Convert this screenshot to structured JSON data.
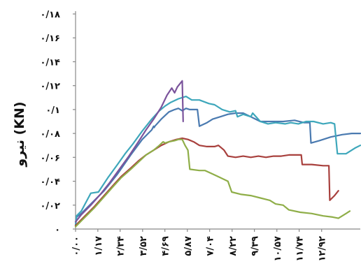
{
  "chart_data": {
    "type": "line",
    "ylabel": "نیرو (KN)",
    "xlabel": "",
    "title": "",
    "ylim": [
      0,
      0.18
    ],
    "xlim": [
      0,
      14.95
    ],
    "yticks": [
      {
        "value": 0,
        "label": "۰"
      },
      {
        "value": 0.02,
        "label": "۰/۰۲"
      },
      {
        "value": 0.04,
        "label": "۰/۰۴"
      },
      {
        "value": 0.06,
        "label": "۰/۰۶"
      },
      {
        "value": 0.08,
        "label": "۰/۰۸"
      },
      {
        "value": 0.1,
        "label": "۰/۱"
      },
      {
        "value": 0.12,
        "label": "۰/۱۲"
      },
      {
        "value": 0.14,
        "label": "۰/۱۴"
      },
      {
        "value": 0.16,
        "label": "۰/۱۶"
      },
      {
        "value": 0.18,
        "label": "۰/۱۸"
      }
    ],
    "xticks": [
      {
        "value": 0.0,
        "label": "۰/۰۰"
      },
      {
        "value": 1.17,
        "label": "۱/۱۷"
      },
      {
        "value": 2.34,
        "label": "۲/۳۴"
      },
      {
        "value": 3.52,
        "label": "۳/۵۲"
      },
      {
        "value": 4.69,
        "label": "۴/۶۹"
      },
      {
        "value": 5.87,
        "label": "۵/۸۷"
      },
      {
        "value": 7.04,
        "label": "۷/۰۴"
      },
      {
        "value": 8.22,
        "label": "۸/۲۲"
      },
      {
        "value": 9.39,
        "label": "۹/۳۹"
      },
      {
        "value": 10.57,
        "label": "۱۰/۵۷"
      },
      {
        "value": 11.74,
        "label": "۱۱/۷۴"
      },
      {
        "value": 12.92,
        "label": "۱۲/۹۲"
      }
    ],
    "grid": false,
    "legend": "none",
    "series": [
      {
        "color": "#4a7ab0",
        "points": [
          [
            0,
            0.003
          ],
          [
            0.05,
            0.01
          ],
          [
            0.3,
            0.013
          ],
          [
            0.8,
            0.021
          ],
          [
            1.5,
            0.032
          ],
          [
            2.2,
            0.046
          ],
          [
            2.9,
            0.062
          ],
          [
            3.5,
            0.075
          ],
          [
            4.0,
            0.083
          ],
          [
            4.1,
            0.086
          ],
          [
            4.13,
            0.085
          ],
          [
            4.16,
            0.086
          ],
          [
            4.5,
            0.092
          ],
          [
            4.9,
            0.098
          ],
          [
            5.2,
            0.1
          ],
          [
            5.4,
            0.101
          ],
          [
            5.6,
            0.099
          ],
          [
            5.8,
            0.101
          ],
          [
            6.0,
            0.1
          ],
          [
            6.4,
            0.1
          ],
          [
            6.5,
            0.086
          ],
          [
            6.9,
            0.089
          ],
          [
            7.2,
            0.092
          ],
          [
            7.6,
            0.094
          ],
          [
            8.0,
            0.096
          ],
          [
            8.4,
            0.097
          ],
          [
            8.8,
            0.097
          ],
          [
            9.2,
            0.094
          ],
          [
            9.7,
            0.09
          ],
          [
            10.3,
            0.09
          ],
          [
            10.9,
            0.09
          ],
          [
            11.5,
            0.091
          ],
          [
            12.0,
            0.089
          ],
          [
            12.3,
            0.089
          ],
          [
            12.36,
            0.072
          ],
          [
            12.8,
            0.074
          ],
          [
            13.4,
            0.077
          ],
          [
            14.0,
            0.079
          ],
          [
            14.5,
            0.08
          ],
          [
            14.95,
            0.08
          ]
        ]
      },
      {
        "color": "#3ea7bb",
        "points": [
          [
            0,
            0.003
          ],
          [
            0.05,
            0.011
          ],
          [
            0.3,
            0.015
          ],
          [
            0.8,
            0.03
          ],
          [
            1.2,
            0.031
          ],
          [
            1.7,
            0.043
          ],
          [
            2.2,
            0.054
          ],
          [
            2.6,
            0.063
          ],
          [
            3.0,
            0.071
          ],
          [
            3.5,
            0.082
          ],
          [
            4.0,
            0.092
          ],
          [
            4.4,
            0.099
          ],
          [
            4.7,
            0.103
          ],
          [
            5.0,
            0.106
          ],
          [
            5.4,
            0.109
          ],
          [
            5.8,
            0.111
          ],
          [
            6.1,
            0.108
          ],
          [
            6.5,
            0.108
          ],
          [
            7.0,
            0.105
          ],
          [
            7.3,
            0.104
          ],
          [
            7.7,
            0.1
          ],
          [
            8.1,
            0.098
          ],
          [
            8.4,
            0.099
          ],
          [
            8.5,
            0.094
          ],
          [
            8.8,
            0.096
          ],
          [
            9.2,
            0.094
          ],
          [
            9.3,
            0.097
          ],
          [
            9.7,
            0.09
          ],
          [
            10.1,
            0.088
          ],
          [
            10.5,
            0.089
          ],
          [
            11.0,
            0.088
          ],
          [
            11.3,
            0.089
          ],
          [
            11.7,
            0.088
          ],
          [
            12.1,
            0.09
          ],
          [
            12.5,
            0.09
          ],
          [
            13.0,
            0.088
          ],
          [
            13.4,
            0.089
          ],
          [
            13.6,
            0.088
          ],
          [
            13.75,
            0.063
          ],
          [
            14.2,
            0.063
          ],
          [
            14.7,
            0.068
          ],
          [
            14.95,
            0.07
          ]
        ]
      },
      {
        "color": "#7b549c",
        "points": [
          [
            0,
            0.006
          ],
          [
            0.3,
            0.012
          ],
          [
            0.8,
            0.02
          ],
          [
            1.3,
            0.029
          ],
          [
            1.8,
            0.039
          ],
          [
            2.3,
            0.05
          ],
          [
            2.8,
            0.061
          ],
          [
            3.3,
            0.073
          ],
          [
            3.7,
            0.083
          ],
          [
            4.1,
            0.092
          ],
          [
            4.5,
            0.102
          ],
          [
            4.8,
            0.112
          ],
          [
            5.05,
            0.118
          ],
          [
            5.2,
            0.114
          ],
          [
            5.35,
            0.119
          ],
          [
            5.6,
            0.124
          ],
          [
            5.65,
            0.09
          ]
        ]
      },
      {
        "color": "#a8403d",
        "points": [
          [
            0,
            0.003
          ],
          [
            0.5,
            0.011
          ],
          [
            1.0,
            0.019
          ],
          [
            1.5,
            0.028
          ],
          [
            2.0,
            0.037
          ],
          [
            2.4,
            0.044
          ],
          [
            2.9,
            0.051
          ],
          [
            3.3,
            0.057
          ],
          [
            3.7,
            0.062
          ],
          [
            4.1,
            0.066
          ],
          [
            4.5,
            0.07
          ],
          [
            4.9,
            0.073
          ],
          [
            5.3,
            0.075
          ],
          [
            5.6,
            0.076
          ],
          [
            5.9,
            0.075
          ],
          [
            6.2,
            0.073
          ],
          [
            6.5,
            0.07
          ],
          [
            6.9,
            0.069
          ],
          [
            7.3,
            0.069
          ],
          [
            7.5,
            0.07
          ],
          [
            7.8,
            0.066
          ],
          [
            8.0,
            0.061
          ],
          [
            8.4,
            0.06
          ],
          [
            8.8,
            0.061
          ],
          [
            9.2,
            0.06
          ],
          [
            9.6,
            0.061
          ],
          [
            10.0,
            0.06
          ],
          [
            10.4,
            0.061
          ],
          [
            10.8,
            0.061
          ],
          [
            11.2,
            0.062
          ],
          [
            11.6,
            0.062
          ],
          [
            11.85,
            0.062
          ],
          [
            11.9,
            0.054
          ],
          [
            12.4,
            0.054
          ],
          [
            13.0,
            0.053
          ],
          [
            13.3,
            0.053
          ],
          [
            13.35,
            0.024
          ],
          [
            13.6,
            0.028
          ],
          [
            13.8,
            0.032
          ]
        ]
      },
      {
        "color": "#8fae48",
        "points": [
          [
            0,
            0.002
          ],
          [
            0.5,
            0.01
          ],
          [
            1.0,
            0.018
          ],
          [
            1.5,
            0.027
          ],
          [
            2.0,
            0.036
          ],
          [
            2.4,
            0.043
          ],
          [
            2.9,
            0.05
          ],
          [
            3.3,
            0.056
          ],
          [
            3.7,
            0.062
          ],
          [
            4.1,
            0.066
          ],
          [
            4.4,
            0.07
          ],
          [
            4.6,
            0.073
          ],
          [
            4.7,
            0.072
          ],
          [
            4.9,
            0.073
          ],
          [
            5.2,
            0.074
          ],
          [
            5.4,
            0.075
          ],
          [
            5.6,
            0.075
          ],
          [
            5.75,
            0.07
          ],
          [
            5.9,
            0.066
          ],
          [
            6.0,
            0.05
          ],
          [
            6.5,
            0.049
          ],
          [
            6.8,
            0.049
          ],
          [
            7.2,
            0.046
          ],
          [
            7.6,
            0.043
          ],
          [
            8.0,
            0.04
          ],
          [
            8.2,
            0.031
          ],
          [
            8.7,
            0.029
          ],
          [
            9.2,
            0.028
          ],
          [
            9.7,
            0.026
          ],
          [
            10.2,
            0.024
          ],
          [
            10.5,
            0.021
          ],
          [
            10.9,
            0.02
          ],
          [
            11.2,
            0.016
          ],
          [
            11.8,
            0.014
          ],
          [
            12.4,
            0.013
          ],
          [
            13.0,
            0.011
          ],
          [
            13.5,
            0.01
          ],
          [
            13.8,
            0.009
          ],
          [
            14.2,
            0.013
          ],
          [
            14.4,
            0.015
          ]
        ]
      }
    ]
  }
}
